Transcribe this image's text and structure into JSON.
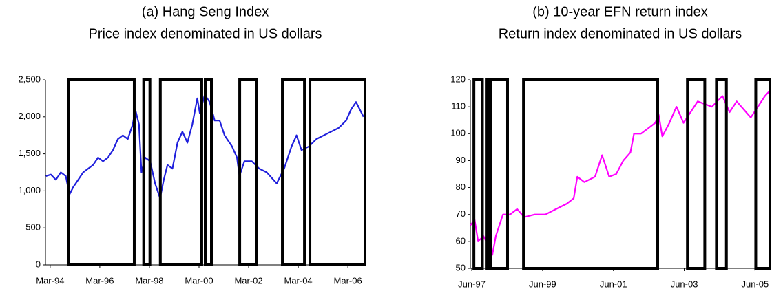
{
  "chart_data": [
    {
      "type": "line",
      "title": "(a) Hang Seng Index",
      "subtitle": "Price index denominated in US dollars",
      "x": [
        1994.0,
        1994.2,
        1994.4,
        1994.6,
        1994.8,
        1994.95,
        1995.1,
        1995.3,
        1995.5,
        1995.7,
        1995.9,
        1996.1,
        1996.3,
        1996.5,
        1996.7,
        1996.9,
        1997.1,
        1997.3,
        1997.5,
        1997.6,
        1997.75,
        1997.85,
        1998.0,
        1998.2,
        1998.4,
        1998.6,
        1998.75,
        1998.9,
        1999.1,
        1999.3,
        1999.5,
        1999.7,
        1999.9,
        2000.1,
        2000.2,
        2000.4,
        2000.6,
        2000.8,
        2001.0,
        2001.2,
        2001.5,
        2001.7,
        2001.8,
        2002.0,
        2002.3,
        2002.6,
        2002.9,
        2003.3,
        2003.6,
        2003.9,
        2004.1,
        2004.3,
        2004.6,
        2004.9,
        2005.2,
        2005.5,
        2005.8,
        2006.1,
        2006.3,
        2006.5,
        2006.8
      ],
      "series": [
        {
          "name": "Hang Seng Index",
          "color": "#1f1fdc",
          "values": [
            1200,
            1220,
            1150,
            1250,
            1200,
            950,
            1050,
            1150,
            1250,
            1300,
            1350,
            1450,
            1400,
            1450,
            1550,
            1700,
            1750,
            1700,
            1900,
            2100,
            1900,
            1250,
            1450,
            1400,
            1100,
            900,
            1150,
            1350,
            1300,
            1650,
            1800,
            1650,
            1900,
            2250,
            2050,
            2300,
            2200,
            1950,
            1950,
            1750,
            1600,
            1450,
            1200,
            1400,
            1400,
            1300,
            1250,
            1100,
            1300,
            1600,
            1750,
            1550,
            1600,
            1700,
            1750,
            1800,
            1850,
            1950,
            2100,
            2200,
            2000
          ]
        }
      ],
      "periods": [
        [
          1994.92,
          1997.56
        ],
        [
          1997.94,
          1998.19
        ],
        [
          1998.61,
          2000.28
        ],
        [
          2000.42,
          2000.67
        ],
        [
          2001.81,
          2002.5
        ],
        [
          2003.53,
          2004.42
        ],
        [
          2004.64,
          2006.86
        ]
      ],
      "xlim": [
        1993.98,
        2006.86
      ],
      "ylim": [
        0,
        2500
      ],
      "xticks": [
        {
          "value": 1994.17,
          "label": "Mar-94"
        },
        {
          "value": 1996.17,
          "label": "Mar-96"
        },
        {
          "value": 1998.17,
          "label": "Mar-98"
        },
        {
          "value": 2000.17,
          "label": "Mar-00"
        },
        {
          "value": 2002.17,
          "label": "Mar-02"
        },
        {
          "value": 2004.17,
          "label": "Mar-04"
        },
        {
          "value": 2006.17,
          "label": "Mar-06"
        }
      ],
      "yticks": [
        0,
        500,
        {
          "value": 1000,
          "label": "1,000"
        },
        {
          "value": 1500,
          "label": "1,500"
        },
        {
          "value": 2000,
          "label": "2,000"
        },
        {
          "value": 2500,
          "label": "2,500"
        }
      ]
    },
    {
      "type": "line",
      "title": "(b) 10-year EFN return index",
      "subtitle": "Return index denominated in US dollars",
      "x": [
        1997.38,
        1997.5,
        1997.6,
        1997.75,
        1997.9,
        1998.0,
        1998.1,
        1998.3,
        1998.5,
        1998.7,
        1998.9,
        1999.2,
        1999.5,
        1999.8,
        2000.1,
        2000.3,
        2000.4,
        2000.6,
        2000.9,
        2001.1,
        2001.3,
        2001.5,
        2001.7,
        2001.9,
        2002.0,
        2002.2,
        2002.4,
        2002.6,
        2002.7,
        2002.8,
        2003.0,
        2003.2,
        2003.4,
        2003.6,
        2003.8,
        2004.0,
        2004.2,
        2004.5,
        2004.7,
        2004.9,
        2005.1,
        2005.3,
        2005.5,
        2005.7,
        2005.84
      ],
      "series": [
        {
          "name": "10-year EFN return index",
          "color": "#ff00ff",
          "values": [
            66,
            68,
            60,
            62,
            58,
            55,
            62,
            70,
            70,
            72,
            69,
            70,
            70,
            72,
            74,
            76,
            84,
            82,
            84,
            92,
            84,
            85,
            90,
            93,
            100,
            100,
            102,
            104,
            107,
            99,
            104,
            110,
            104,
            108,
            112,
            111,
            110,
            114,
            108,
            112,
            109,
            106,
            110,
            114,
            116
          ]
        }
      ],
      "periods": [
        [
          1997.48,
          1997.72
        ],
        [
          1997.83,
          1997.89
        ],
        [
          1997.95,
          1998.43
        ],
        [
          1998.88,
          2002.67
        ],
        [
          2003.51,
          2004.0
        ],
        [
          2004.33,
          2004.61
        ],
        [
          2005.44,
          2005.84
        ]
      ],
      "xlim": [
        1997.38,
        2005.84
      ],
      "ylim": [
        50,
        120
      ],
      "xticks": [
        {
          "value": 1997.42,
          "label": "Jun-97"
        },
        {
          "value": 1999.42,
          "label": "Jun-99"
        },
        {
          "value": 2001.42,
          "label": "Jun-01"
        },
        {
          "value": 2003.42,
          "label": "Jun-03"
        },
        {
          "value": 2005.42,
          "label": "Jun-05"
        }
      ],
      "yticks": [
        50,
        60,
        70,
        80,
        90,
        100,
        110,
        120
      ]
    }
  ]
}
